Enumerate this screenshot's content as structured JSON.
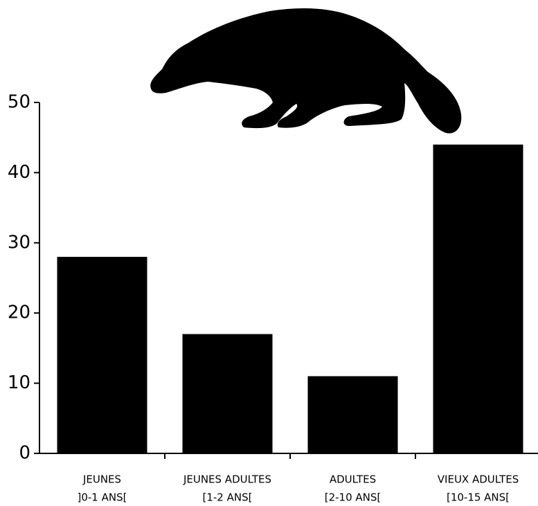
{
  "chart_data": {
    "type": "bar",
    "categories": [
      [
        "JEUNES",
        "]0-1 ANS["
      ],
      [
        "JEUNES ADULTES",
        "[1-2 ANS["
      ],
      [
        "ADULTES",
        "[2-10 ANS["
      ],
      [
        "VIEUX ADULTES",
        "[10-15 ANS["
      ]
    ],
    "values": [
      28,
      17,
      11,
      44
    ],
    "color": "#000000",
    "ylim": [
      0,
      50
    ],
    "yticks": [
      0,
      10,
      20,
      30,
      40,
      50
    ],
    "grid": false
  }
}
